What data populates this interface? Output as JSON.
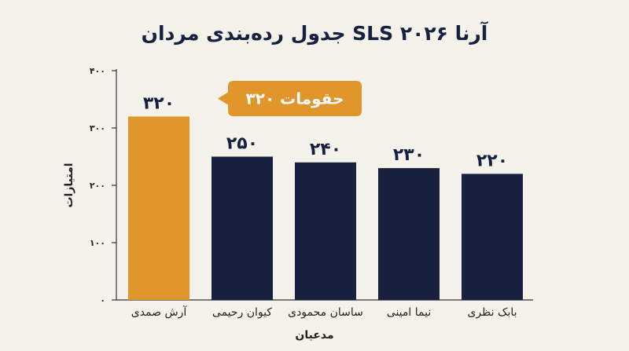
{
  "chart_data": {
    "type": "bar",
    "title": "جدول رده‌بندی مردان SLS آرنا ۲۰۲۶",
    "xlabel": "مدعیان",
    "ylabel": "امتیازات",
    "ylim": [
      0,
      400
    ],
    "yticks": [
      0,
      100,
      200,
      300,
      400
    ],
    "ytick_labels": [
      "۰",
      "۱۰۰",
      "۲۰۰",
      "۳۰۰",
      "۴۰۰"
    ],
    "categories": [
      "آرش صمدی",
      "کیوان رحیمی",
      "ساسان محمودی",
      "نیما امینی",
      "بابک نظری"
    ],
    "values": [
      320,
      250,
      240,
      230,
      220
    ],
    "value_labels": [
      "۳۲۰",
      "۲۵۰",
      "۲۴۰",
      "۲۳۰",
      "۲۲۰"
    ],
    "highlight_index": 0,
    "callout": "حقومات ۳۲۰",
    "grid": false,
    "colors": {
      "highlight": "#e0962a",
      "bar": "#17213f",
      "axis": "#333333",
      "callout_bg": "#e0962a",
      "background": "#f4f2ea"
    }
  }
}
